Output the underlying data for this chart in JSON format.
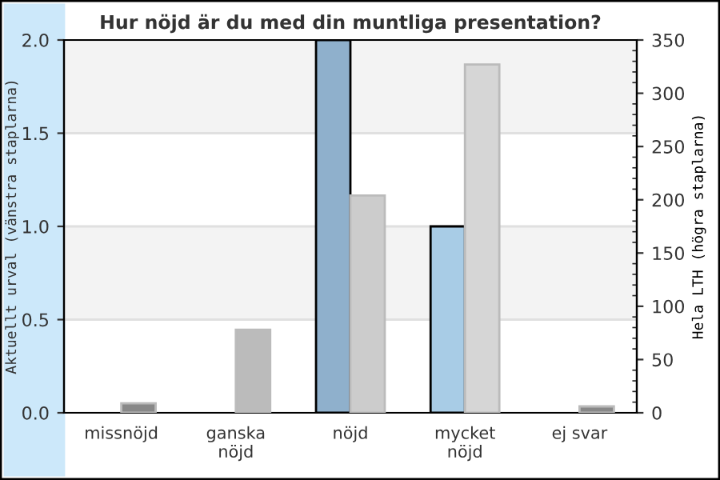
{
  "chart_data": {
    "type": "bar",
    "title": "Hur nöjd är du med din muntliga presentation?",
    "ylabel": "Aktuellt urval (vänstra staplarna)",
    "y2label": "Hela LTH (högra staplarna)",
    "categories": [
      "missnöjd",
      "ganska\nnöjd",
      "nöjd",
      "mycket\nnöjd",
      "ej svar"
    ],
    "series": [
      {
        "values": [
          0,
          0,
          2,
          1,
          0
        ],
        "colors": [
          "#8fb0cc",
          "#8fb0cc",
          "#8fb0cc",
          "#a8cce6",
          "#8fb0cc"
        ]
      },
      {
        "values": [
          9,
          78,
          204,
          327,
          6
        ],
        "axis": "y2",
        "colors": [
          "#888888",
          "#bbbbbb",
          "#cccccc",
          "#d6d6d6",
          "#888888"
        ]
      }
    ],
    "ylim": [
      0,
      2
    ],
    "yticks": [
      {
        "value": 0,
        "label": "0.0"
      },
      {
        "value": 0.5,
        "label": "0.5"
      },
      {
        "value": 1,
        "label": "1.0"
      },
      {
        "value": 1.5,
        "label": "1.5"
      },
      {
        "value": 2,
        "label": "2.0"
      }
    ],
    "y2lim": [
      0,
      350
    ],
    "y2ticks": [
      0,
      {
        "value": 10,
        "label": null
      },
      {
        "value": 20,
        "label": null
      },
      {
        "value": 30,
        "label": null
      },
      {
        "value": 40,
        "label": null
      },
      50,
      {
        "value": 60,
        "label": null
      },
      {
        "value": 70,
        "label": null
      },
      {
        "value": 80,
        "label": null
      },
      {
        "value": 90,
        "label": null
      },
      100,
      {
        "value": 110,
        "label": null
      },
      {
        "value": 120,
        "label": null
      },
      {
        "value": 130,
        "label": null
      },
      {
        "value": 140,
        "label": null
      },
      150,
      {
        "value": 160,
        "label": null
      },
      {
        "value": 170,
        "label": null
      },
      {
        "value": 180,
        "label": null
      },
      {
        "value": 190,
        "label": null
      },
      200,
      {
        "value": 210,
        "label": null
      },
      {
        "value": 220,
        "label": null
      },
      {
        "value": 230,
        "label": null
      },
      {
        "value": 240,
        "label": null
      },
      250,
      {
        "value": 260,
        "label": null
      },
      {
        "value": 270,
        "label": null
      },
      {
        "value": 280,
        "label": null
      },
      {
        "value": 290,
        "label": null
      },
      300,
      {
        "value": 310,
        "label": null
      },
      {
        "value": 320,
        "label": null
      },
      {
        "value": 330,
        "label": null
      },
      {
        "value": 340,
        "label": null
      },
      350
    ],
    "bands": [
      {
        "axis": "y",
        "from": 0.5,
        "to": 1.0,
        "color": "#f3f3f3"
      },
      {
        "axis": "y",
        "from": 1.5,
        "to": 2.0,
        "color": "#f3f3f3"
      }
    ],
    "grid": "y",
    "legend": false
  }
}
